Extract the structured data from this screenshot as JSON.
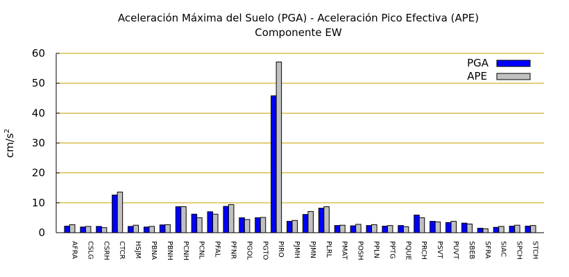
{
  "colors": {
    "pga": "#0000ff",
    "ape": "#c0c0c0",
    "grid": "#c8a000",
    "axis": "#000000"
  },
  "chart_data": {
    "type": "bar",
    "title": "Aceleración Máxima del Suelo (PGA) -  Aceleración Pico Efectiva (APE)",
    "subtitle": "Componente EW",
    "ylabel": "cm/s",
    "ylabel_sup": "2",
    "xlabel": "",
    "ylim": [
      0,
      60
    ],
    "yticks": [
      "0",
      "10",
      "20",
      "30",
      "40",
      "50",
      "60"
    ],
    "grid": "horizontal",
    "legend_position": "top-right",
    "categories": [
      "AFRA",
      "CSLG",
      "CSRH",
      "CTCR",
      "HSJM",
      "PBNA",
      "PBNH",
      "PCNH",
      "PCNL",
      "PFAL",
      "PFNR",
      "PGOL",
      "PGTO",
      "PIRO",
      "PJMH",
      "PJMN",
      "PLRL",
      "PMAT",
      "POSH",
      "PPLN",
      "PPTG",
      "PQUE",
      "PRCH",
      "PSVT",
      "PUVT",
      "SBEB",
      "SFRA",
      "SIAC",
      "SPCH",
      "STCH"
    ],
    "series": [
      {
        "name": "PGA",
        "values": [
          2.2,
          1.9,
          2.1,
          12.6,
          2.1,
          1.9,
          2.6,
          8.7,
          6.2,
          7.0,
          8.8,
          5.0,
          5.0,
          45.8,
          3.8,
          6.1,
          8.2,
          2.4,
          2.3,
          2.4,
          2.2,
          2.4,
          5.9,
          3.8,
          3.4,
          3.2,
          1.5,
          1.8,
          2.2,
          2.2
        ]
      },
      {
        "name": "APE",
        "values": [
          2.7,
          2.1,
          1.7,
          13.6,
          2.5,
          2.1,
          2.7,
          8.7,
          5.0,
          6.2,
          9.4,
          4.4,
          5.1,
          57.1,
          4.1,
          7.1,
          8.7,
          2.5,
          2.8,
          2.7,
          2.4,
          2.0,
          5.0,
          3.6,
          3.8,
          2.9,
          1.3,
          2.1,
          2.5,
          2.4
        ]
      }
    ]
  }
}
